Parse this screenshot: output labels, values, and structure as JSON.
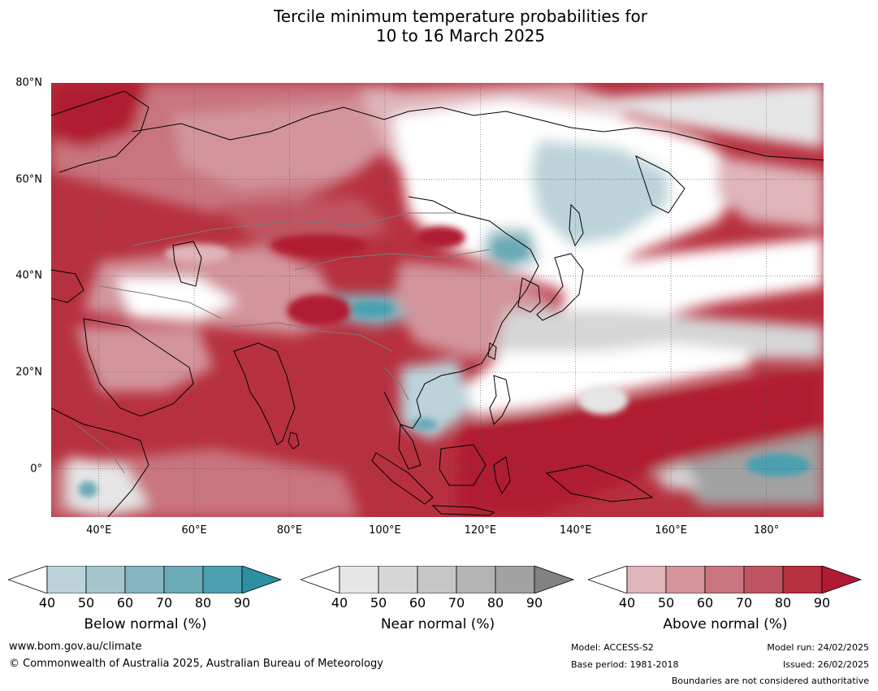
{
  "title": {
    "line1": "Tercile minimum temperature probabilities for",
    "line2": "10 to 16 March 2025"
  },
  "map": {
    "lat_labels": [
      "80°N",
      "60°N",
      "40°N",
      "20°N",
      "0°"
    ],
    "lon_labels": [
      "40°E",
      "60°E",
      "80°E",
      "100°E",
      "120°E",
      "140°E",
      "160°E",
      "180°"
    ],
    "lat_range": [
      -10,
      80
    ],
    "lon_range": [
      30,
      192
    ],
    "colors": {
      "above": [
        "#ffffff",
        "#dfb4ba",
        "#d3949c",
        "#c9747e",
        "#bf5461",
        "#b7303f",
        "#b01b33"
      ],
      "near": [
        "#ffffff",
        "#e6e6e6",
        "#d6d6d6",
        "#c6c6c6",
        "#b4b4b4",
        "#a2a2a2",
        "#828282"
      ],
      "below": [
        "#ffffff",
        "#bcd3da",
        "#a4c5cc",
        "#86b5bf",
        "#6aaab6",
        "#4aa0b0",
        "#2e8fa2"
      ]
    }
  },
  "colorbars": [
    {
      "name": "Below normal (%)",
      "ticks": [
        "40",
        "50",
        "60",
        "70",
        "80",
        "90"
      ]
    },
    {
      "name": "Near normal (%)",
      "ticks": [
        "40",
        "50",
        "60",
        "70",
        "80",
        "90"
      ]
    },
    {
      "name": "Above normal (%)",
      "ticks": [
        "40",
        "50",
        "60",
        "70",
        "80",
        "90"
      ]
    }
  ],
  "footer": {
    "website": "www.bom.gov.au/climate",
    "copyright": "© Commonwealth of Australia 2025, Australian Bureau of Meteorology",
    "model": "Model: ACCESS-S2",
    "base_period": "Base period: 1981-2018",
    "model_run": "Model run: 24/02/2025",
    "issued": "Issued: 26/02/2025",
    "boundaries": "Boundaries are not considered authoritative"
  }
}
